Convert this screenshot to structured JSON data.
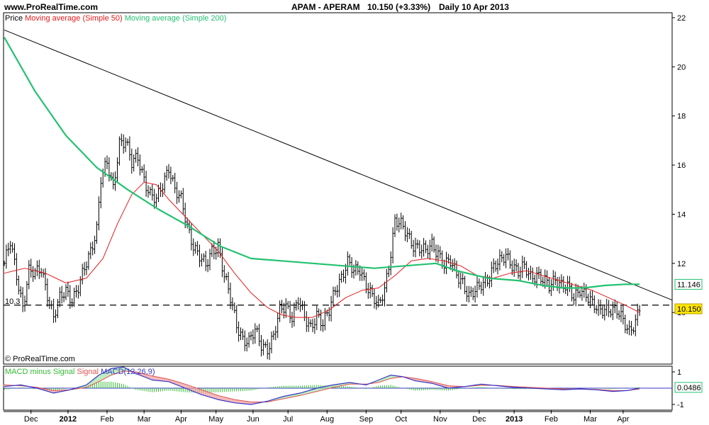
{
  "header": {
    "site": "www.ProRealTime.com",
    "ticker": "APAM - APERAM",
    "quote": "10.150 (+3.33%)",
    "period": "Daily  10 Apr 2013"
  },
  "colors": {
    "ma50": "#e41b1b",
    "ma200": "#22c270",
    "macd_line": "#3535c8",
    "signal_line": "#e05050",
    "histogram": "#33bb33",
    "trendline": "#000000",
    "price_bars": "#000000",
    "last_price_box": "#ffe600",
    "ma200_box": "#22c270"
  },
  "chart_data": [
    {
      "type": "candlestick",
      "legend": {
        "price": "Price",
        "ma50": "Moving average (Simple 50)",
        "ma200": "Moving average (Simple 200)"
      },
      "copyright": "© ProRealTime.com",
      "y_ticks": [
        {
          "v": 22,
          "label": "22"
        },
        {
          "v": 20,
          "label": "20"
        },
        {
          "v": 18,
          "label": "18"
        },
        {
          "v": 16,
          "label": "16"
        },
        {
          "v": 14,
          "label": "14"
        },
        {
          "v": 12,
          "label": "12"
        },
        {
          "v": 10,
          "label": "10"
        }
      ],
      "ylim": [
        7.9,
        22.2
      ],
      "support_level": {
        "value": 10.3,
        "label": "10.3"
      },
      "last_price": {
        "value": 10.15,
        "label": "10.150"
      },
      "ma200_last": {
        "value": 11.146,
        "label": "11.146"
      },
      "trendline": [
        [
          0.0,
          21.5
        ],
        [
          325.0,
          10.5
        ]
      ],
      "price_path": [
        [
          0,
          12.0
        ],
        [
          3,
          12.8
        ],
        [
          6,
          11.5
        ],
        [
          9,
          10.3
        ],
        [
          12,
          11.7
        ],
        [
          15,
          11.5
        ],
        [
          18,
          11.8
        ],
        [
          21,
          10.8
        ],
        [
          24,
          9.8
        ],
        [
          27,
          10.5
        ],
        [
          30,
          10.9
        ],
        [
          33,
          10.6
        ],
        [
          36,
          11.0
        ],
        [
          39,
          11.7
        ],
        [
          42,
          12.5
        ],
        [
          45,
          13.5
        ],
        [
          47,
          15.5
        ],
        [
          50,
          16.0
        ],
        [
          53,
          15.0
        ],
        [
          56,
          17.0
        ],
        [
          59,
          17.0
        ],
        [
          62,
          16.0
        ],
        [
          65,
          16.3
        ],
        [
          68,
          15.5
        ],
        [
          71,
          14.8
        ],
        [
          74,
          14.5
        ],
        [
          77,
          15.2
        ],
        [
          80,
          16.0
        ],
        [
          83,
          15.0
        ],
        [
          86,
          14.5
        ],
        [
          89,
          13.5
        ],
        [
          92,
          12.8
        ],
        [
          95,
          12.3
        ],
        [
          98,
          11.8
        ],
        [
          101,
          12.5
        ],
        [
          104,
          12.8
        ],
        [
          107,
          11.5
        ],
        [
          110,
          10.5
        ],
        [
          113,
          9.5
        ],
        [
          116,
          9.0
        ],
        [
          119,
          8.8
        ],
        [
          122,
          9.2
        ],
        [
          125,
          8.7
        ],
        [
          128,
          8.6
        ],
        [
          131,
          9.0
        ],
        [
          134,
          10.0
        ],
        [
          137,
          10.3
        ],
        [
          140,
          9.9
        ],
        [
          143,
          10.5
        ],
        [
          146,
          9.7
        ],
        [
          149,
          9.4
        ],
        [
          152,
          10.0
        ],
        [
          155,
          9.5
        ],
        [
          158,
          10.0
        ],
        [
          161,
          11.0
        ],
        [
          164,
          11.5
        ],
        [
          167,
          12.0
        ],
        [
          170,
          11.6
        ],
        [
          173,
          11.8
        ],
        [
          176,
          11.2
        ],
        [
          179,
          10.6
        ],
        [
          182,
          10.2
        ],
        [
          185,
          11.0
        ],
        [
          188,
          12.5
        ],
        [
          190,
          13.7
        ],
        [
          193,
          13.5
        ],
        [
          196,
          13.2
        ],
        [
          199,
          12.8
        ],
        [
          202,
          12.6
        ],
        [
          205,
          12.4
        ],
        [
          208,
          12.8
        ],
        [
          211,
          12.5
        ],
        [
          214,
          11.9
        ],
        [
          217,
          12.0
        ],
        [
          220,
          11.6
        ],
        [
          223,
          11.3
        ],
        [
          226,
          10.6
        ],
        [
          229,
          10.8
        ],
        [
          232,
          11.2
        ],
        [
          235,
          11.4
        ],
        [
          238,
          11.8
        ],
        [
          241,
          12.0
        ],
        [
          244,
          12.4
        ],
        [
          247,
          12.0
        ],
        [
          250,
          11.6
        ],
        [
          253,
          11.8
        ],
        [
          256,
          11.5
        ],
        [
          259,
          11.6
        ],
        [
          262,
          11.3
        ],
        [
          265,
          11.0
        ],
        [
          268,
          11.4
        ],
        [
          271,
          11.2
        ],
        [
          274,
          11.0
        ],
        [
          277,
          10.5
        ],
        [
          280,
          11.0
        ],
        [
          283,
          10.8
        ],
        [
          286,
          10.3
        ],
        [
          289,
          10.0
        ],
        [
          292,
          10.2
        ],
        [
          295,
          10.2
        ],
        [
          298,
          10.0
        ],
        [
          301,
          9.6
        ],
        [
          304,
          9.3
        ],
        [
          307,
          9.7
        ],
        [
          309,
          10.15
        ]
      ],
      "ma50_path": [
        [
          0,
          11.6
        ],
        [
          10,
          11.8
        ],
        [
          20,
          11.6
        ],
        [
          30,
          11.2
        ],
        [
          40,
          11.4
        ],
        [
          48,
          12.2
        ],
        [
          55,
          13.6
        ],
        [
          62,
          14.8
        ],
        [
          68,
          15.3
        ],
        [
          74,
          15.2
        ],
        [
          80,
          14.6
        ],
        [
          88,
          13.9
        ],
        [
          96,
          13.2
        ],
        [
          104,
          12.5
        ],
        [
          112,
          11.6
        ],
        [
          120,
          10.8
        ],
        [
          128,
          10.2
        ],
        [
          135,
          9.9
        ],
        [
          142,
          9.8
        ],
        [
          150,
          9.8
        ],
        [
          158,
          10.1
        ],
        [
          166,
          10.6
        ],
        [
          174,
          10.9
        ],
        [
          182,
          11.0
        ],
        [
          190,
          11.5
        ],
        [
          198,
          12.1
        ],
        [
          206,
          12.2
        ],
        [
          214,
          12.1
        ],
        [
          222,
          11.9
        ],
        [
          230,
          11.5
        ],
        [
          238,
          11.4
        ],
        [
          246,
          11.6
        ],
        [
          254,
          11.7
        ],
        [
          262,
          11.5
        ],
        [
          270,
          11.3
        ],
        [
          278,
          11.1
        ],
        [
          286,
          10.9
        ],
        [
          294,
          10.6
        ],
        [
          302,
          10.3
        ],
        [
          309,
          10.0
        ]
      ],
      "ma200_path": [
        [
          0,
          21.2
        ],
        [
          15,
          19.0
        ],
        [
          30,
          17.2
        ],
        [
          45,
          15.9
        ],
        [
          60,
          15.0
        ],
        [
          75,
          14.2
        ],
        [
          90,
          13.5
        ],
        [
          105,
          12.7
        ],
        [
          120,
          12.2
        ],
        [
          135,
          12.1
        ],
        [
          150,
          12.0
        ],
        [
          165,
          11.9
        ],
        [
          180,
          11.8
        ],
        [
          195,
          11.9
        ],
        [
          210,
          12.0
        ],
        [
          220,
          11.7
        ],
        [
          235,
          11.4
        ],
        [
          250,
          11.3
        ],
        [
          262,
          11.1
        ],
        [
          272,
          11.0
        ],
        [
          282,
          11.0
        ],
        [
          292,
          11.1
        ],
        [
          302,
          11.15
        ],
        [
          309,
          11.146
        ]
      ],
      "x_ticks": [
        {
          "x": 13,
          "label": "Dec",
          "bold": false
        },
        {
          "x": 31,
          "label": "2012",
          "bold": true
        },
        {
          "x": 50,
          "label": "Feb",
          "bold": false
        },
        {
          "x": 68,
          "label": "Mar",
          "bold": false
        },
        {
          "x": 86,
          "label": "Apr",
          "bold": false
        },
        {
          "x": 103,
          "label": "May",
          "bold": false
        },
        {
          "x": 121,
          "label": "Jun",
          "bold": false
        },
        {
          "x": 138,
          "label": "Jul",
          "bold": false
        },
        {
          "x": 157,
          "label": "Aug",
          "bold": false
        },
        {
          "x": 176,
          "label": "Sep",
          "bold": false
        },
        {
          "x": 193,
          "label": "Oct",
          "bold": false
        },
        {
          "x": 212,
          "label": "Nov",
          "bold": false
        },
        {
          "x": 231,
          "label": "Dec",
          "bold": false
        },
        {
          "x": 248,
          "label": "2013",
          "bold": true
        },
        {
          "x": 266,
          "label": "Feb",
          "bold": false
        },
        {
          "x": 285,
          "label": "Mar",
          "bold": false
        },
        {
          "x": 301,
          "label": "Apr",
          "bold": false
        }
      ]
    },
    {
      "type": "macd",
      "legend": {
        "hist": "MACD minus Signal",
        "signal": "Signal",
        "macd": "MACD(12,26,9)"
      },
      "y_ticks": [
        {
          "v": 1,
          "label": "1"
        },
        {
          "v": -1,
          "label": "-1"
        }
      ],
      "ylim": [
        -1.35,
        1.35
      ],
      "last_value": {
        "value": 0.0486,
        "label": "0.0486"
      },
      "macd_path": [
        [
          0,
          0.1
        ],
        [
          8,
          0.2
        ],
        [
          16,
          0.0
        ],
        [
          24,
          -0.3
        ],
        [
          32,
          -0.1
        ],
        [
          40,
          0.2
        ],
        [
          46,
          0.8
        ],
        [
          52,
          1.2
        ],
        [
          58,
          1.3
        ],
        [
          64,
          0.9
        ],
        [
          72,
          0.5
        ],
        [
          80,
          0.4
        ],
        [
          88,
          0.0
        ],
        [
          96,
          -0.4
        ],
        [
          104,
          -0.7
        ],
        [
          112,
          -0.9
        ],
        [
          120,
          -1.0
        ],
        [
          128,
          -0.8
        ],
        [
          136,
          -0.5
        ],
        [
          144,
          -0.3
        ],
        [
          152,
          0.0
        ],
        [
          160,
          0.2
        ],
        [
          168,
          0.35
        ],
        [
          176,
          0.2
        ],
        [
          182,
          0.5
        ],
        [
          188,
          0.8
        ],
        [
          194,
          0.7
        ],
        [
          200,
          0.45
        ],
        [
          208,
          0.3
        ],
        [
          216,
          0.0
        ],
        [
          224,
          0.1
        ],
        [
          232,
          0.25
        ],
        [
          240,
          0.15
        ],
        [
          248,
          0.05
        ],
        [
          256,
          0.0
        ],
        [
          264,
          -0.05
        ],
        [
          272,
          -0.1
        ],
        [
          280,
          -0.05
        ],
        [
          288,
          -0.1
        ],
        [
          296,
          -0.2
        ],
        [
          303,
          -0.15
        ],
        [
          309,
          0.0
        ]
      ],
      "signal_path": [
        [
          0,
          0.2
        ],
        [
          8,
          0.15
        ],
        [
          16,
          0.05
        ],
        [
          24,
          -0.15
        ],
        [
          32,
          -0.1
        ],
        [
          40,
          0.05
        ],
        [
          46,
          0.4
        ],
        [
          52,
          0.8
        ],
        [
          58,
          1.05
        ],
        [
          64,
          1.0
        ],
        [
          72,
          0.75
        ],
        [
          80,
          0.55
        ],
        [
          88,
          0.25
        ],
        [
          96,
          -0.1
        ],
        [
          104,
          -0.45
        ],
        [
          112,
          -0.7
        ],
        [
          120,
          -0.85
        ],
        [
          128,
          -0.85
        ],
        [
          136,
          -0.65
        ],
        [
          144,
          -0.45
        ],
        [
          152,
          -0.2
        ],
        [
          160,
          0.05
        ],
        [
          168,
          0.25
        ],
        [
          176,
          0.25
        ],
        [
          182,
          0.35
        ],
        [
          188,
          0.6
        ],
        [
          194,
          0.7
        ],
        [
          200,
          0.6
        ],
        [
          208,
          0.4
        ],
        [
          216,
          0.15
        ],
        [
          224,
          0.1
        ],
        [
          232,
          0.18
        ],
        [
          240,
          0.17
        ],
        [
          248,
          0.1
        ],
        [
          256,
          0.05
        ],
        [
          264,
          0.0
        ],
        [
          272,
          -0.05
        ],
        [
          280,
          -0.05
        ],
        [
          288,
          -0.08
        ],
        [
          296,
          -0.15
        ],
        [
          303,
          -0.15
        ],
        [
          309,
          -0.05
        ]
      ]
    }
  ]
}
